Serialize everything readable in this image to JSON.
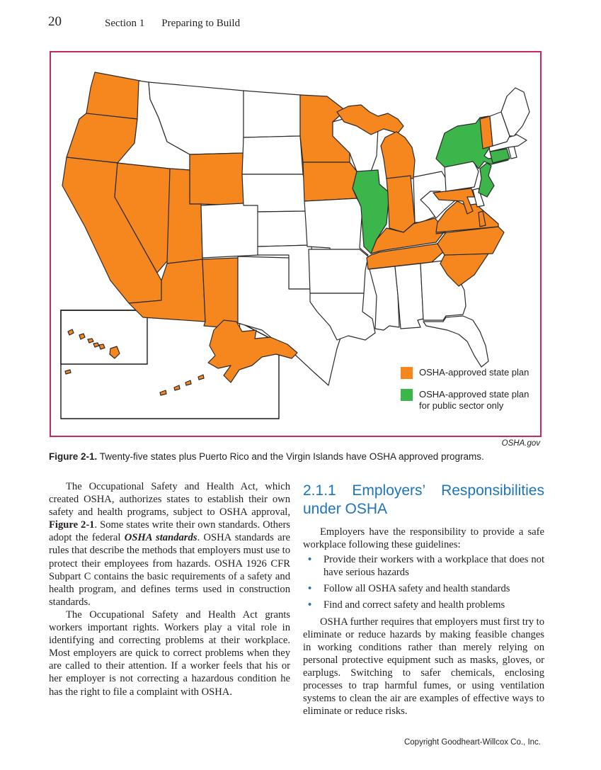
{
  "page": {
    "number": "20",
    "section_label": "Section 1",
    "section_title": "Preparing to Build",
    "copyright": "Copyright Goodheart-Willcox Co., Inc."
  },
  "figure": {
    "caption_label": "Figure 2-1.",
    "caption_text": " Twenty-five states plus Puerto Rico and the Virgin Islands have OSHA approved programs.",
    "attribution": "OSHA.gov",
    "border_color": "#C62A5A",
    "legend": [
      {
        "label": "OSHA-approved state plan",
        "color": "#F6871F",
        "status": "state_plan"
      },
      {
        "label": "OSHA-approved state plan for public sector only",
        "color": "#3CB54A",
        "status": "public_sector_only"
      }
    ],
    "map": {
      "state_plan_states": [
        "WA",
        "OR",
        "CA",
        "NV",
        "AZ",
        "UT",
        "NM",
        "WY",
        "MN",
        "IA",
        "MI",
        "IN",
        "KY",
        "TN",
        "NC",
        "SC",
        "VA",
        "MD",
        "VT",
        "AK",
        "HI"
      ],
      "public_sector_only_states": [
        "IL",
        "NY",
        "NJ",
        "CT"
      ],
      "colors": {
        "state_plan": "#F6871F",
        "public_sector_only": "#3CB54A",
        "none": "#FFFFFF",
        "stroke": "#2B2B2B"
      }
    }
  },
  "article": {
    "left_column": {
      "paragraphs": [
        {
          "runs": [
            {
              "text": "The Occupational Safety and Health Act, which created OSHA, authorizes states to establish their own safety and health programs, subject to OSHA approval, ",
              "style": "normal"
            },
            {
              "text": "Figure 2-1",
              "style": "bold"
            },
            {
              "text": ". Some states write their own standards. Others adopt the federal ",
              "style": "normal"
            },
            {
              "text": "OSHA standards",
              "style": "bold-italic"
            },
            {
              "text": ". OSHA standards are rules that describe the methods that employers must use to protect their employees from hazards. OSHA 1926 CFR Subpart C contains the basic requirements of a safety and health program, and defines terms used in construction standards.",
              "style": "normal"
            }
          ]
        },
        {
          "runs": [
            {
              "text": "The Occupational Safety and Health Act grants workers important rights. Workers play a vital role in identifying and correcting problems at their workplace. Most employers are quick to correct problems when they are called to their attention. If a worker feels that his or her employer is not correcting a hazardous condition he has the right to file a complaint with OSHA.",
              "style": "normal"
            }
          ]
        }
      ]
    },
    "right_column": {
      "heading": "2.1.1 Employers’ Responsibilities under OSHA",
      "heading_color": "#1C75BC",
      "intro": "Employers have the responsibility to provide a safe workplace following these guidelines:",
      "bullets": [
        "Provide their workers with a workplace that does not have serious hazards",
        "Follow all OSHA safety and health standards",
        "Find and correct safety and health problems"
      ],
      "paragraph": "OSHA further requires that employers must first try to eliminate or reduce hazards by making feasible changes in working conditions rather than merely relying on personal protective equipment such as masks, gloves, or earplugs. Switching to safer chemicals, enclosing processes to trap harmful fumes, or using ventilation systems to clean the air are examples of effective ways to eliminate or reduce risks."
    }
  }
}
